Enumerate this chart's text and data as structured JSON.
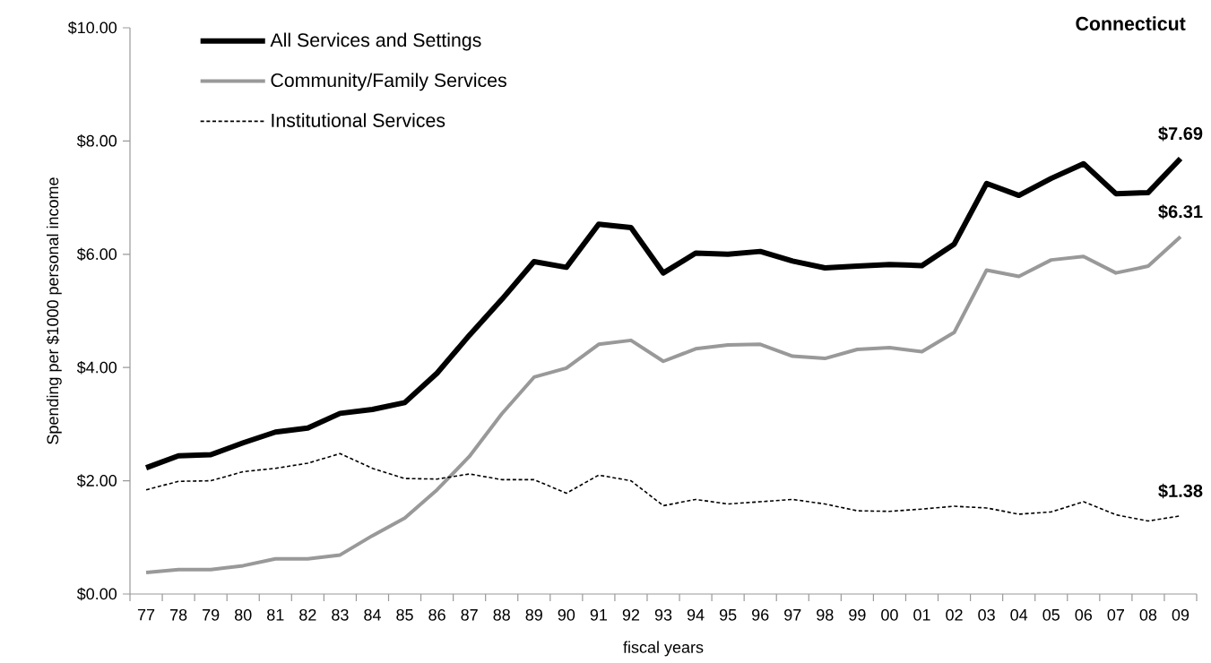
{
  "chart_data": {
    "type": "line",
    "title": "Connecticut",
    "xlabel": "fiscal years",
    "ylabel": "Spending per $1000 personal income",
    "categories": [
      "77",
      "78",
      "79",
      "80",
      "81",
      "82",
      "83",
      "84",
      "85",
      "86",
      "87",
      "88",
      "89",
      "90",
      "91",
      "92",
      "93",
      "94",
      "95",
      "96",
      "97",
      "98",
      "99",
      "00",
      "01",
      "02",
      "03",
      "04",
      "05",
      "06",
      "07",
      "08",
      "09"
    ],
    "series": [
      {
        "name": "All Services and Settings",
        "color": "#000000",
        "line_style": "solid",
        "values": [
          2.23,
          2.44,
          2.46,
          2.67,
          2.86,
          2.93,
          3.19,
          3.26,
          3.38,
          3.9,
          4.57,
          5.2,
          5.87,
          5.77,
          6.53,
          6.47,
          5.67,
          6.02,
          6.0,
          6.05,
          5.88,
          5.76,
          5.79,
          5.82,
          5.8,
          6.18,
          7.25,
          7.04,
          7.34,
          7.6,
          7.07,
          7.09,
          7.69
        ]
      },
      {
        "name": "Community/Family Services",
        "color": "#999999",
        "line_style": "solid",
        "values": [
          0.38,
          0.43,
          0.43,
          0.5,
          0.62,
          0.62,
          0.69,
          1.03,
          1.34,
          1.84,
          2.43,
          3.18,
          3.83,
          3.99,
          4.41,
          4.48,
          4.11,
          4.33,
          4.4,
          4.41,
          4.2,
          4.16,
          4.32,
          4.35,
          4.28,
          4.62,
          5.72,
          5.61,
          5.9,
          5.96,
          5.67,
          5.79,
          6.31
        ]
      },
      {
        "name": "Institutional Services",
        "color": "#000000",
        "line_style": "dashed",
        "values": [
          1.84,
          1.99,
          2.0,
          2.16,
          2.22,
          2.31,
          2.48,
          2.22,
          2.04,
          2.03,
          2.12,
          2.02,
          2.02,
          1.78,
          2.1,
          2.0,
          1.56,
          1.67,
          1.59,
          1.63,
          1.67,
          1.59,
          1.47,
          1.46,
          1.5,
          1.55,
          1.52,
          1.41,
          1.45,
          1.63,
          1.4,
          1.29,
          1.38
        ]
      }
    ],
    "ylim": [
      0,
      10
    ],
    "yticks": [
      {
        "value": 0,
        "label": "$0.00"
      },
      {
        "value": 2,
        "label": "$2.00"
      },
      {
        "value": 4,
        "label": "$4.00"
      },
      {
        "value": 6,
        "label": "$6.00"
      },
      {
        "value": 8,
        "label": "$8.00"
      },
      {
        "value": 10,
        "label": "$10.00"
      }
    ],
    "grid": false,
    "legend": "top left",
    "annotations": [
      {
        "text": "$7.69",
        "x": "09",
        "y": 7.69
      },
      {
        "text": "$6.31",
        "x": "09",
        "y": 6.31
      },
      {
        "text": "$1.38",
        "x": "09",
        "y": 1.38
      }
    ]
  }
}
